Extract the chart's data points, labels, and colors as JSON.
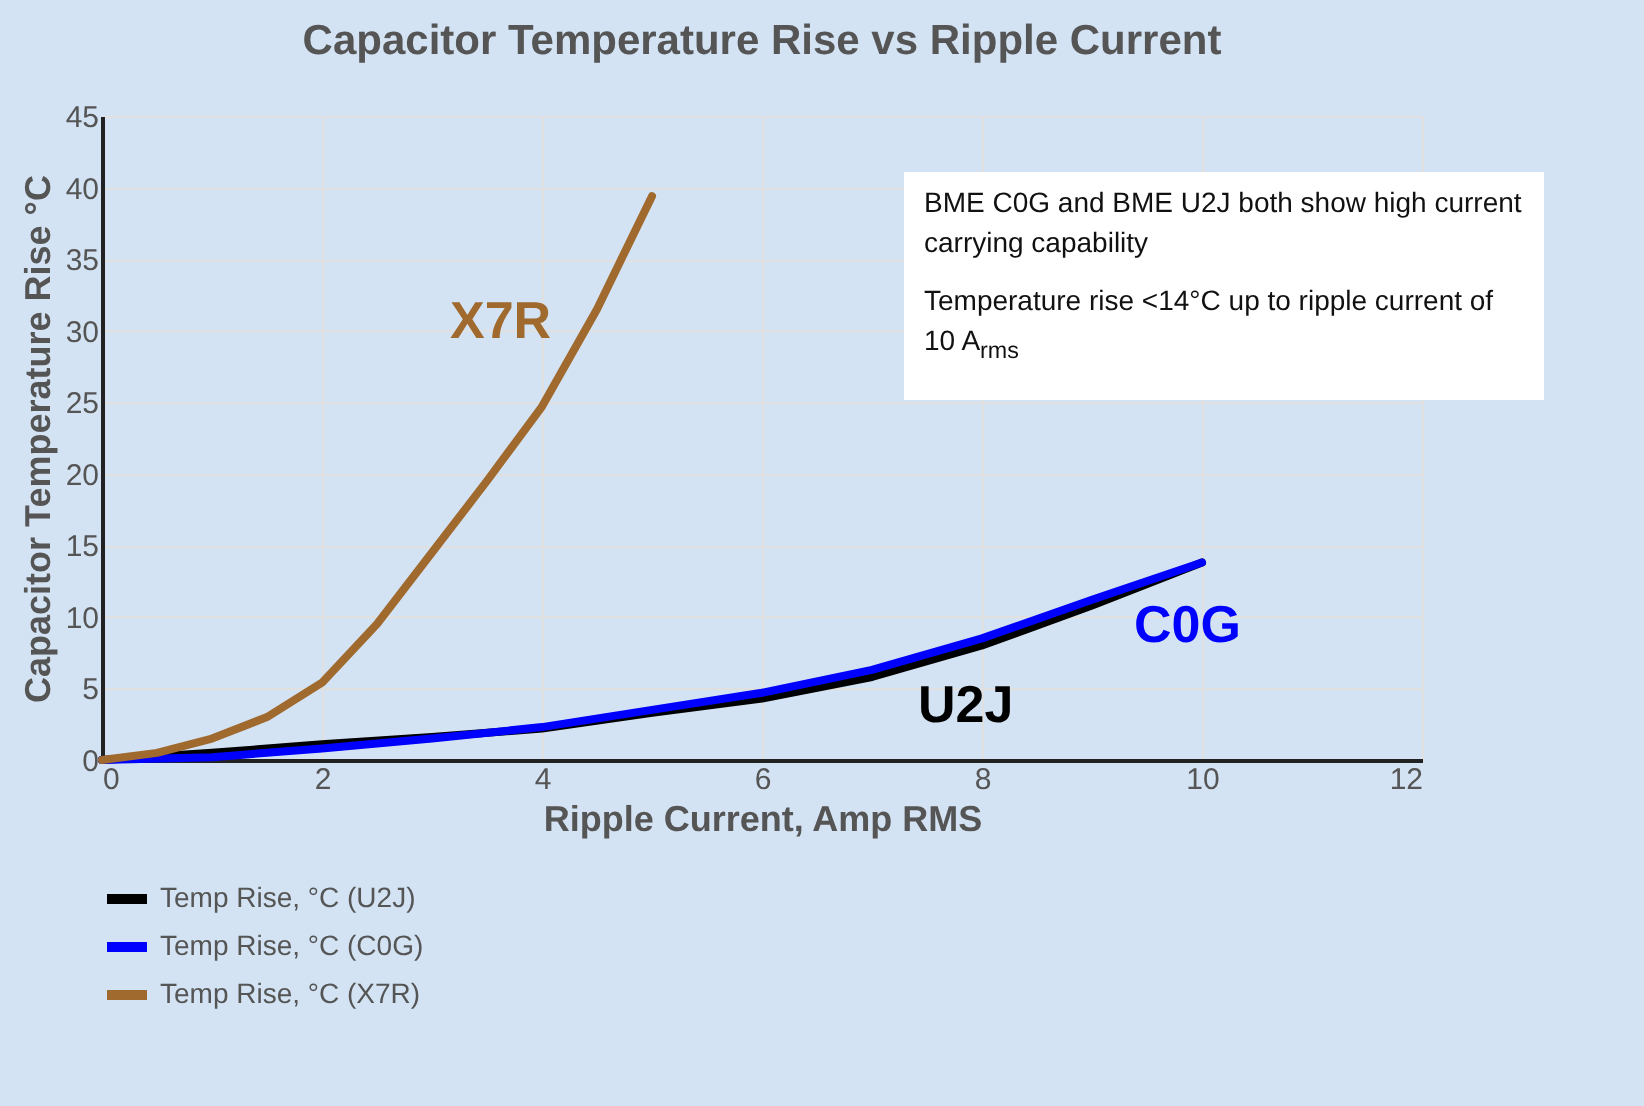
{
  "chart_data": {
    "type": "line",
    "title": "Capacitor Temperature Rise vs Ripple Current",
    "xlabel": "Ripple Current, Amp RMS",
    "ylabel": "Capacitor Temperature Rise °C",
    "xlim": [
      0,
      12
    ],
    "xticks": [
      0,
      2,
      4,
      6,
      8,
      10,
      12
    ],
    "ylim": [
      0,
      45
    ],
    "yticks": [
      0,
      5,
      10,
      15,
      20,
      25,
      30,
      35,
      40,
      45
    ],
    "grid": true,
    "legend": "bottom",
    "line_style": "solid",
    "marker": "none",
    "series": [
      {
        "name": "Temp Rise, °C (U2J)",
        "color": "#000000",
        "x": [
          0,
          1,
          2,
          3,
          4,
          5,
          6,
          7,
          8,
          9,
          10
        ],
        "values": [
          0,
          0.5,
          1.1,
          1.6,
          2.2,
          3.3,
          4.3,
          5.8,
          8,
          10.8,
          13.8
        ]
      },
      {
        "name": "Temp Rise, °C (C0G)",
        "color": "#0000ff",
        "x": [
          0,
          1,
          2,
          3,
          4,
          5,
          6,
          7,
          8,
          9,
          10
        ],
        "values": [
          0,
          0.2,
          0.8,
          1.5,
          2.3,
          3.5,
          4.7,
          6.3,
          8.5,
          11.2,
          13.8
        ]
      },
      {
        "name": "Temp Rise, °C (X7R)",
        "color": "#a0692e",
        "x": [
          0,
          0.5,
          1,
          1.5,
          2,
          2.5,
          3,
          3.5,
          4,
          4.5,
          5
        ],
        "values": [
          0,
          0.5,
          1.5,
          3,
          5.4,
          9.5,
          14.5,
          19.5,
          24.7,
          31.5,
          39.4
        ]
      }
    ],
    "annotations": [
      "BME C0G and BME U2J both show high current carrying capability",
      "Temperature rise <14°C up to ripple current of 10 A$_{rms}$",
      "U2J",
      "C0G",
      "X7R"
    ]
  }
}
